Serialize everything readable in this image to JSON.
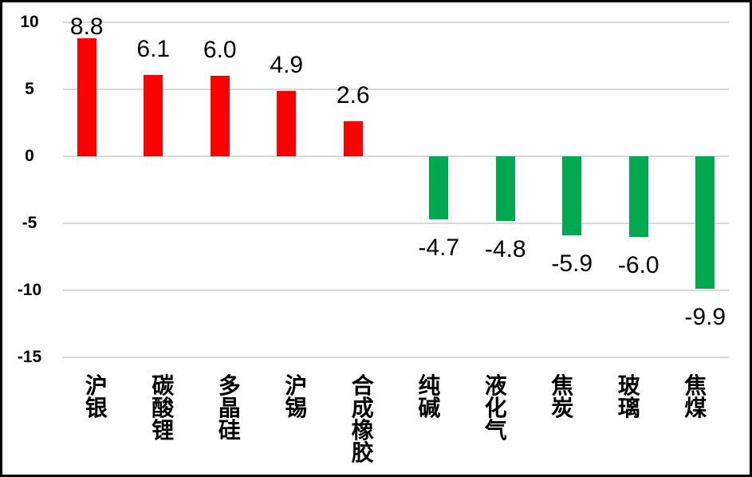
{
  "chart_data": {
    "type": "bar",
    "title": "",
    "xlabel": "",
    "ylabel": "",
    "categories": [
      "沪银",
      "碳酸锂",
      "多晶硅",
      "沪锡",
      "合成橡胶",
      "纯碱",
      "液化气",
      "焦炭",
      "玻璃",
      "焦煤"
    ],
    "values": [
      8.8,
      6.1,
      6.0,
      4.9,
      2.6,
      -4.7,
      -4.8,
      -5.9,
      -6.0,
      -9.9
    ],
    "value_labels": [
      "8.8",
      "6.1",
      "6.0",
      "4.9",
      "2.6",
      "-4.7",
      "-4.8",
      "-5.9",
      "-6.0",
      "-9.9"
    ],
    "yticks": [
      10,
      5,
      0,
      -5,
      -10,
      -15
    ],
    "ytick_labels": [
      "10",
      "5",
      "0",
      "-5",
      "-10",
      "-15"
    ],
    "ylim": [
      -15,
      10
    ],
    "grid": true,
    "legend_position": "none",
    "colors": {
      "positive": "#FF0000",
      "negative": "#00A94F",
      "gridline": "#D9D9D9",
      "text": "#000000",
      "border": "#000000",
      "background": "#FFFFFF"
    }
  }
}
